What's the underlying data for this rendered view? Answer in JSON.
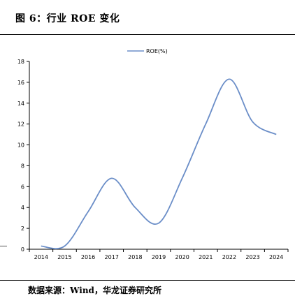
{
  "figure": {
    "title": "图 6：行业 ROE 变化",
    "source": "数据来源：Wind，华龙证券研究所"
  },
  "chart_data": {
    "type": "line",
    "x": [
      "2014",
      "2015",
      "2016",
      "2017",
      "2018",
      "2019",
      "2020",
      "2021",
      "2022",
      "2023",
      "2024"
    ],
    "series": [
      {
        "name": "ROE(%)",
        "color": "#6b8ec8",
        "values": [
          0.3,
          0.3,
          3.6,
          6.8,
          4.0,
          2.5,
          6.8,
          12.0,
          16.3,
          12.2,
          11.0
        ]
      }
    ],
    "ylim": [
      0,
      18
    ],
    "yticks": [
      0,
      2,
      4,
      6,
      8,
      10,
      12,
      14,
      16,
      18
    ],
    "legend_position": "top-center",
    "grid": false
  }
}
